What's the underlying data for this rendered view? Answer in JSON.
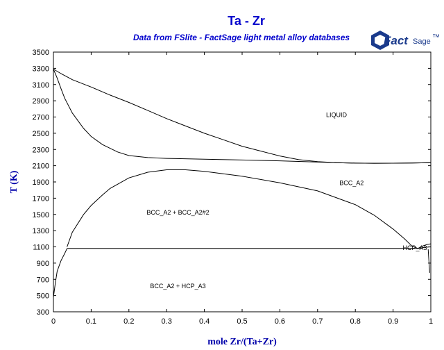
{
  "title": "Ta - Zr",
  "subtitle": "Data from FSlite - FactSage light metal alloy databases",
  "logo": {
    "main": "Fact",
    "suffix": "Sage",
    "mark": "™"
  },
  "chart_data": {
    "type": "line",
    "xlabel": "mole Zr/(Ta+Zr)",
    "ylabel": "T (K)",
    "xlim": [
      0,
      1
    ],
    "ylim": [
      300,
      3500
    ],
    "xticks": [
      "0",
      "0.1",
      "0.2",
      "0.3",
      "0.4",
      "0.5",
      "0.6",
      "0.7",
      "0.8",
      "0.9",
      "1"
    ],
    "yticks": [
      "300",
      "500",
      "700",
      "900",
      "1100",
      "1300",
      "1500",
      "1700",
      "1900",
      "2100",
      "2300",
      "2500",
      "2700",
      "2900",
      "3100",
      "3300",
      "3500"
    ],
    "grid": false,
    "series": [
      {
        "x": [
          0,
          0.02,
          0.05,
          0.1,
          0.15,
          0.2,
          0.25,
          0.3,
          0.35,
          0.4,
          0.45,
          0.5,
          0.55,
          0.6,
          0.65,
          0.7,
          0.75,
          0.8,
          0.85,
          0.9,
          0.95,
          1.0
        ],
        "y": [
          3290,
          3235,
          3160,
          3070,
          2970,
          2880,
          2780,
          2680,
          2590,
          2500,
          2420,
          2340,
          2280,
          2220,
          2175,
          2150,
          2138,
          2132,
          2130,
          2131,
          2133,
          2138
        ]
      },
      {
        "x": [
          0,
          0.01,
          0.02,
          0.03,
          0.05,
          0.08,
          0.1,
          0.13,
          0.17,
          0.2,
          0.25,
          0.3,
          0.4,
          0.5,
          0.6,
          0.7,
          0.75,
          0.8,
          0.85,
          0.9,
          0.95,
          1.0
        ],
        "y": [
          3290,
          3180,
          3050,
          2930,
          2750,
          2560,
          2460,
          2360,
          2270,
          2225,
          2200,
          2190,
          2180,
          2170,
          2160,
          2145,
          2138,
          2132,
          2130,
          2131,
          2133,
          2138
        ]
      },
      {
        "x": [
          0.036,
          0.05,
          0.08,
          0.1,
          0.13,
          0.15,
          0.2,
          0.25,
          0.3,
          0.35,
          0.4,
          0.5,
          0.6,
          0.7,
          0.8,
          0.85,
          0.9,
          0.93,
          0.95,
          0.966
        ],
        "y": [
          1100,
          1280,
          1500,
          1610,
          1740,
          1820,
          1950,
          2020,
          2050,
          2050,
          2030,
          1970,
          1890,
          1790,
          1620,
          1490,
          1320,
          1200,
          1110,
          1080
        ]
      },
      {
        "x": [
          0.036,
          0.966
        ],
        "y": [
          1080,
          1080
        ]
      },
      {
        "x": [
          0,
          0.005,
          0.01,
          0.02,
          0.03,
          0.036
        ],
        "y": [
          480,
          650,
          800,
          930,
          1020,
          1080
        ]
      },
      {
        "x": [
          0.966,
          0.975,
          0.99,
          1.0
        ],
        "y": [
          1080,
          1105,
          1130,
          1138
        ]
      },
      {
        "x": [
          0.966,
          0.985,
          1.0
        ],
        "y": [
          1080,
          1095,
          1100
        ]
      },
      {
        "x": [
          0.993,
          0.995,
          0.997
        ],
        "y": [
          1070,
          920,
          780
        ]
      }
    ],
    "annotations": [
      {
        "text": "LIQUID",
        "x": 0.75,
        "y": 2700
      },
      {
        "text": "BCC_A2",
        "x": 0.79,
        "y": 1860
      },
      {
        "text": "BCC_A2 + BCC_A2#2",
        "x": 0.33,
        "y": 1500
      },
      {
        "text": "HCP_A3",
        "x": 0.99,
        "y": 1060
      },
      {
        "text": "BCC_A2 + HCP_A3",
        "x": 0.33,
        "y": 590
      }
    ]
  }
}
